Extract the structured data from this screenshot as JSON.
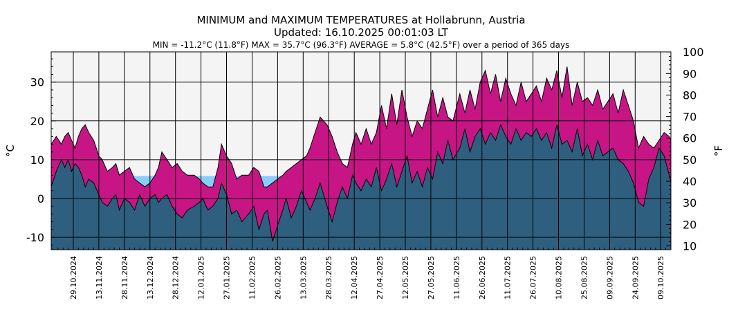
{
  "chart_data": {
    "type": "area",
    "title": "MINIMUM and MAXIMUM TEMPERATURES at Hollabrunn, Austria",
    "subtitle": "Updated: 16.10.2025 00:01:03 LT",
    "stats": "MIN = -11.2°C (11.8°F)   MAX = 35.7°C (96.3°F)   AVERAGE = 5.8°C (42.5°F) over a period of 365 days",
    "ylabel_left": "°C",
    "ylabel_right": "°F",
    "ylim_c": [
      -13.2,
      37.8
    ],
    "yticks_c": [
      -10,
      0,
      10,
      20,
      30
    ],
    "yticks_f": [
      10,
      20,
      30,
      40,
      50,
      60,
      70,
      80,
      90,
      100
    ],
    "x_range_days": [
      0,
      364
    ],
    "x_start_date": "16.10.2024",
    "x_tick_labels": [
      "29.10.2024",
      "13.11.2024",
      "28.11.2024",
      "13.12.2024",
      "28.12.2024",
      "12.01.2025",
      "27.01.2025",
      "11.02.2025",
      "26.02.2025",
      "13.03.2025",
      "28.03.2025",
      "12.04.2025",
      "27.04.2025",
      "12.05.2025",
      "27.05.2025",
      "11.06.2025",
      "26.06.2025",
      "11.07.2025",
      "26.07.2025",
      "10.08.2025",
      "25.08.2025",
      "09.09.2025",
      "24.09.2025",
      "09.10.2025"
    ],
    "x_tick_days": [
      13,
      28,
      43,
      58,
      73,
      88,
      103,
      118,
      133,
      148,
      163,
      178,
      193,
      208,
      223,
      238,
      253,
      268,
      283,
      298,
      313,
      328,
      343,
      358
    ],
    "average_c": 5.8,
    "colors": {
      "plot_bg": "#f4f4f4",
      "max_fill": "#c71585",
      "min_fill": "#2e5f7f",
      "average_band": "#87cefa",
      "grid": "#000000"
    },
    "series": [
      {
        "name": "max_temperature_c",
        "x": [
          0,
          3,
          6,
          8,
          10,
          12,
          14,
          16,
          18,
          20,
          22,
          25,
          28,
          30,
          33,
          36,
          38,
          40,
          43,
          46,
          49,
          52,
          55,
          58,
          61,
          63,
          65,
          68,
          71,
          74,
          77,
          80,
          84,
          87,
          89,
          92,
          95,
          98,
          100,
          103,
          106,
          109,
          112,
          116,
          119,
          122,
          125,
          127,
          130,
          133,
          136,
          138,
          141,
          144,
          147,
          150,
          152,
          155,
          158,
          162,
          165,
          168,
          171,
          174,
          177,
          179,
          182,
          185,
          188,
          191,
          194,
          197,
          200,
          203,
          206,
          209,
          212,
          215,
          218,
          221,
          224,
          227,
          230,
          233,
          236,
          240,
          243,
          246,
          249,
          252,
          255,
          258,
          261,
          264,
          267,
          270,
          273,
          276,
          279,
          282,
          285,
          288,
          291,
          294,
          297,
          300,
          303,
          306,
          309,
          312,
          315,
          318,
          321,
          324,
          327,
          330,
          333,
          336,
          339,
          342,
          345,
          348,
          351,
          354,
          357,
          360,
          363,
          364
        ],
        "values": [
          14,
          16,
          14,
          16,
          17,
          15,
          13,
          16,
          18,
          19,
          17,
          15,
          11,
          10,
          7,
          8,
          9,
          6,
          7,
          8,
          5,
          4,
          3,
          4,
          6,
          8,
          12,
          10,
          8,
          9,
          7,
          6,
          6,
          5,
          4,
          3,
          3,
          8,
          14,
          11,
          9,
          5,
          6,
          6,
          8,
          7,
          3,
          3,
          4,
          5,
          6,
          7,
          8,
          9,
          10,
          11,
          13,
          17,
          21,
          19,
          16,
          12,
          9,
          8,
          14,
          17,
          14,
          18,
          14,
          17,
          24,
          18,
          27,
          19,
          28,
          21,
          16,
          20,
          18,
          23,
          28,
          21,
          26,
          21,
          20,
          27,
          22,
          28,
          23,
          30,
          33,
          27,
          32,
          25,
          31,
          27,
          24,
          30,
          25,
          27,
          29,
          25,
          31,
          28,
          33,
          26,
          34,
          24,
          30,
          25,
          26,
          24,
          28,
          23,
          25,
          27,
          22,
          28,
          24,
          20,
          13,
          16,
          14,
          13,
          15,
          17,
          16,
          15
        ]
      },
      {
        "name": "min_temperature_c",
        "x": [
          0,
          3,
          6,
          8,
          10,
          12,
          14,
          16,
          18,
          20,
          22,
          25,
          28,
          30,
          33,
          36,
          38,
          40,
          43,
          46,
          49,
          52,
          55,
          58,
          61,
          63,
          65,
          68,
          71,
          74,
          77,
          80,
          84,
          87,
          89,
          92,
          95,
          98,
          100,
          103,
          106,
          109,
          112,
          116,
          119,
          122,
          125,
          127,
          130,
          133,
          136,
          138,
          141,
          144,
          147,
          150,
          152,
          155,
          158,
          162,
          165,
          168,
          171,
          174,
          177,
          179,
          182,
          185,
          188,
          191,
          194,
          197,
          200,
          203,
          206,
          209,
          212,
          215,
          218,
          221,
          224,
          227,
          230,
          233,
          236,
          240,
          243,
          246,
          249,
          252,
          255,
          258,
          261,
          264,
          267,
          270,
          273,
          276,
          279,
          282,
          285,
          288,
          291,
          294,
          297,
          300,
          303,
          306,
          309,
          312,
          315,
          318,
          321,
          324,
          327,
          330,
          333,
          336,
          339,
          342,
          345,
          348,
          351,
          354,
          357,
          360,
          363,
          364
        ],
        "values": [
          3,
          7,
          10,
          8,
          10,
          7,
          9,
          8,
          6,
          3,
          5,
          4,
          1,
          -1,
          -2,
          0,
          1,
          -3,
          0,
          -1,
          -3,
          1,
          -2,
          0,
          1,
          -1,
          0,
          1,
          -2,
          -4,
          -5,
          -3,
          -2,
          -1,
          0,
          -3,
          -2,
          0,
          4,
          1,
          -4,
          -3,
          -6,
          -4,
          -2,
          -8,
          -4,
          -3,
          -11,
          -7,
          -3,
          0,
          -5,
          -2,
          2,
          -1,
          -3,
          0,
          4,
          -2,
          -6,
          -1,
          3,
          0,
          6,
          4,
          2,
          5,
          3,
          8,
          2,
          5,
          9,
          3,
          7,
          11,
          4,
          7,
          3,
          8,
          5,
          12,
          9,
          15,
          10,
          13,
          18,
          12,
          16,
          18,
          14,
          17,
          15,
          19,
          16,
          14,
          18,
          15,
          17,
          16,
          18,
          15,
          17,
          13,
          19,
          14,
          15,
          12,
          18,
          11,
          14,
          10,
          15,
          11,
          12,
          13,
          10,
          9,
          7,
          4,
          -1,
          -2,
          5,
          8,
          13,
          11,
          6,
          4
        ]
      }
    ]
  }
}
